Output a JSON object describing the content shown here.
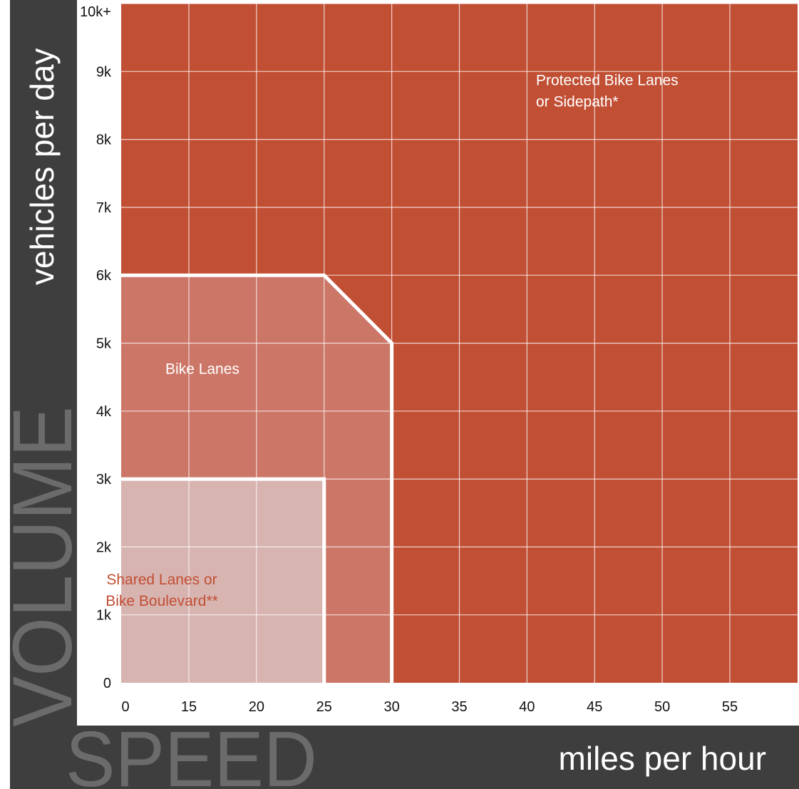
{
  "chart_data": {
    "type": "area",
    "title": "",
    "xlabel": "miles per hour",
    "ylabel": "vehicles per day",
    "x_banner": "SPEED",
    "y_banner": "VOLUME",
    "xlim": [
      0,
      60
    ],
    "ylim": [
      0,
      10000
    ],
    "grid": true,
    "x_ticks": [
      {
        "value": 0,
        "label": "0"
      },
      {
        "value": 15,
        "label": "15"
      },
      {
        "value": 20,
        "label": "20"
      },
      {
        "value": 25,
        "label": "25"
      },
      {
        "value": 30,
        "label": "30"
      },
      {
        "value": 35,
        "label": "35"
      },
      {
        "value": 40,
        "label": "40"
      },
      {
        "value": 45,
        "label": "45"
      },
      {
        "value": 50,
        "label": "50"
      },
      {
        "value": 55,
        "label": "55"
      }
    ],
    "y_ticks": [
      {
        "value": 0,
        "label": "0"
      },
      {
        "value": 1000,
        "label": "1k"
      },
      {
        "value": 2000,
        "label": "2k"
      },
      {
        "value": 3000,
        "label": "3k"
      },
      {
        "value": 4000,
        "label": "4k"
      },
      {
        "value": 5000,
        "label": "5k"
      },
      {
        "value": 6000,
        "label": "6k"
      },
      {
        "value": 7000,
        "label": "7k"
      },
      {
        "value": 8000,
        "label": "8k"
      },
      {
        "value": 9000,
        "label": "9k"
      },
      {
        "value": 10000,
        "label": "10k+"
      }
    ],
    "zones": [
      {
        "name": "Protected Bike Lanes or Sidepath*",
        "label_lines": [
          "Protected Bike Lanes",
          "or Sidepath*"
        ],
        "color": "#c14f34",
        "label_color": "#ffffff",
        "label_at": {
          "x": 43,
          "y": 8800
        },
        "boundary": [
          [
            0,
            0
          ],
          [
            60,
            0
          ],
          [
            60,
            10000
          ],
          [
            0,
            10000
          ]
        ]
      },
      {
        "name": "Bike Lanes",
        "label_lines": [
          "Bike Lanes"
        ],
        "color": "#cc7667",
        "label_color": "#ffffff",
        "label_at": {
          "x": 16,
          "y": 4550
        },
        "boundary": [
          [
            0,
            0
          ],
          [
            30,
            0
          ],
          [
            30,
            5000
          ],
          [
            25,
            6000
          ],
          [
            0,
            6000
          ]
        ]
      },
      {
        "name": "Shared Lanes or Bike Boulevard**",
        "label_lines": [
          "Shared Lanes or",
          "Bike Boulevard**"
        ],
        "color": "#d8b4b1",
        "label_color": "#c14f34",
        "label_at": {
          "x": 13,
          "y": 1450
        },
        "boundary": [
          [
            0,
            0
          ],
          [
            25,
            0
          ],
          [
            25,
            3000
          ],
          [
            0,
            3000
          ]
        ]
      }
    ]
  }
}
